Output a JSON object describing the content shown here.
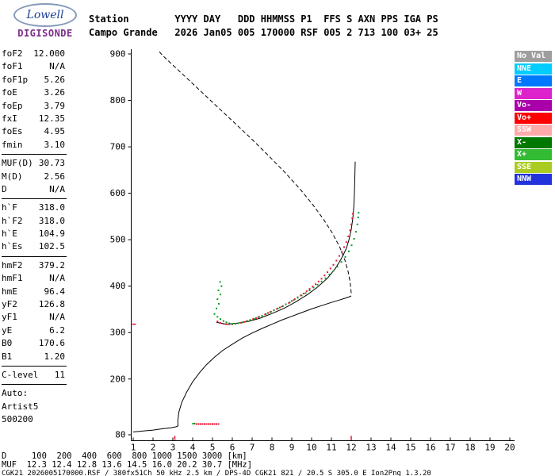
{
  "logo": {
    "brand": "Lowell",
    "product": "DIGISONDE"
  },
  "header": {
    "line1": "Station        YYYY DAY   DDD HHMMSS P1  FFS S AXN PPS IGA PS",
    "line2": "Campo Grande   2026 Jan05 005 170000 RSF 005 2 713 100 03+ 25"
  },
  "params": {
    "groups": [
      {
        "rows": [
          [
            "foF2",
            "12.000"
          ],
          [
            "foF1",
            "N/A"
          ],
          [
            "foF1p",
            "5.26"
          ],
          [
            "foE",
            "3.26"
          ],
          [
            "foEp",
            "3.79"
          ],
          [
            "fxI",
            "12.35"
          ],
          [
            "foEs",
            "4.95"
          ],
          [
            "fmin",
            "3.10"
          ]
        ]
      },
      {
        "rows": [
          [
            "MUF(D)",
            "30.73"
          ],
          [
            "M(D)",
            "2.56"
          ],
          [
            "D",
            "N/A"
          ]
        ]
      },
      {
        "rows": [
          [
            "h`F",
            "318.0"
          ],
          [
            "h`F2",
            "318.0"
          ],
          [
            "h`E",
            "104.9"
          ],
          [
            "h`Es",
            "102.5"
          ]
        ]
      },
      {
        "rows": [
          [
            "hmF2",
            "379.2"
          ],
          [
            "hmF1",
            "N/A"
          ],
          [
            "hmE",
            "96.4"
          ],
          [
            "yF2",
            "126.8"
          ],
          [
            "yF1",
            "N/A"
          ],
          [
            "yE",
            "6.2"
          ],
          [
            "B0",
            "170.6"
          ],
          [
            "B1",
            "1.20"
          ]
        ]
      },
      {
        "rows": [
          [
            "C-level",
            "11"
          ]
        ]
      }
    ],
    "footer": [
      "Auto:",
      "Artist5",
      "500200"
    ]
  },
  "legend": {
    "items": [
      {
        "label": "No Val",
        "bg": "#9e9e9e",
        "fg": "#ffffff"
      },
      {
        "label": "NNE",
        "bg": "#00ccff",
        "fg": "#ffffff"
      },
      {
        "label": "E",
        "bg": "#0077ff",
        "fg": "#ffffff"
      },
      {
        "label": "W",
        "bg": "#dd22cc",
        "fg": "#ffffff"
      },
      {
        "label": "Vo-",
        "bg": "#aa00aa",
        "fg": "#ffffff"
      },
      {
        "label": "Vo+",
        "bg": "#ff0000",
        "fg": "#ffffff"
      },
      {
        "label": "SSW",
        "bg": "#ffaaaa",
        "fg": "#ffffff"
      },
      {
        "label": "X-",
        "bg": "#007700",
        "fg": "#ffffff"
      },
      {
        "label": "X+",
        "bg": "#33bb33",
        "fg": "#ffffff"
      },
      {
        "label": "SSE",
        "bg": "#aacc22",
        "fg": "#ffffff"
      },
      {
        "label": "NNW",
        "bg": "#2233dd",
        "fg": "#ffffff"
      }
    ]
  },
  "chart": {
    "x_min": 1,
    "x_max": 20,
    "y_min": 80,
    "y_max": 900,
    "x_ticks": [
      1,
      2,
      3,
      4,
      5,
      6,
      7,
      8,
      9,
      10,
      11,
      12,
      13,
      14,
      15,
      16,
      17,
      18,
      19,
      20
    ],
    "y_ticks": [
      900,
      800,
      700,
      600,
      500,
      400,
      300,
      200,
      80
    ],
    "freq_markers": [
      3.1,
      12.0
    ],
    "height_markers": [
      318.0
    ]
  },
  "chart_data": {
    "type": "line",
    "title": "",
    "xlabel": "",
    "ylabel": "",
    "xlim": [
      1,
      20
    ],
    "ylim": [
      80,
      900
    ],
    "grid": false,
    "series": [
      {
        "name": "topside-profile-dashed",
        "style": "dashed",
        "color": "#000000",
        "points": [
          [
            12.0,
            385
          ],
          [
            11.95,
            406
          ],
          [
            11.85,
            430
          ],
          [
            11.68,
            456
          ],
          [
            11.42,
            484
          ],
          [
            11.05,
            514
          ],
          [
            10.6,
            544
          ],
          [
            10.05,
            576
          ],
          [
            9.4,
            610
          ],
          [
            8.65,
            645
          ],
          [
            7.8,
            682
          ],
          [
            6.9,
            720
          ],
          [
            5.95,
            758
          ],
          [
            5.0,
            796
          ],
          [
            4.05,
            834
          ],
          [
            3.15,
            870
          ],
          [
            2.45,
            898
          ],
          [
            2.3,
            906
          ]
        ]
      },
      {
        "name": "true-height-profile",
        "style": "solid",
        "color": "#000000",
        "points": [
          [
            1.0,
            86
          ],
          [
            1.5,
            88
          ],
          [
            2.0,
            90
          ],
          [
            2.5,
            93
          ],
          [
            2.9,
            95
          ],
          [
            3.15,
            97
          ],
          [
            3.26,
            99
          ],
          [
            3.25,
            110
          ],
          [
            3.3,
            128
          ],
          [
            3.45,
            150
          ],
          [
            3.7,
            172
          ],
          [
            4.0,
            194
          ],
          [
            4.35,
            214
          ],
          [
            4.7,
            231
          ],
          [
            5.1,
            247
          ],
          [
            5.5,
            261
          ],
          [
            6.0,
            275
          ],
          [
            6.5,
            288
          ],
          [
            7.0,
            299
          ],
          [
            7.5,
            309
          ],
          [
            8.0,
            318
          ],
          [
            8.5,
            327
          ],
          [
            9.0,
            335
          ],
          [
            9.5,
            343
          ],
          [
            10.0,
            351
          ],
          [
            10.5,
            358
          ],
          [
            11.0,
            365
          ],
          [
            11.4,
            370
          ],
          [
            11.7,
            374
          ],
          [
            11.9,
            377
          ],
          [
            12.0,
            379
          ]
        ]
      },
      {
        "name": "artist-trace-fit",
        "style": "solid",
        "color": "#000000",
        "points": [
          [
            5.2,
            322
          ],
          [
            5.7,
            318
          ],
          [
            6.2,
            320
          ],
          [
            6.8,
            324
          ],
          [
            7.4,
            331
          ],
          [
            8.0,
            341
          ],
          [
            8.6,
            352
          ],
          [
            9.2,
            366
          ],
          [
            9.8,
            382
          ],
          [
            10.3,
            398
          ],
          [
            10.8,
            417
          ],
          [
            11.2,
            438
          ],
          [
            11.5,
            459
          ],
          [
            11.75,
            481
          ],
          [
            11.9,
            502
          ],
          [
            12.0,
            522
          ],
          [
            12.08,
            546
          ],
          [
            12.13,
            572
          ],
          [
            12.16,
            600
          ],
          [
            12.18,
            632
          ],
          [
            12.2,
            668
          ]
        ]
      },
      {
        "name": "f-trace-o-mode",
        "style": "dots",
        "color": "#ee1133",
        "points": [
          [
            5.25,
            324
          ],
          [
            5.4,
            321
          ],
          [
            5.55,
            319
          ],
          [
            5.7,
            318
          ],
          [
            5.85,
            318
          ],
          [
            6.0,
            318
          ],
          [
            6.15,
            319
          ],
          [
            6.3,
            320
          ],
          [
            6.45,
            321
          ],
          [
            6.6,
            323
          ],
          [
            6.75,
            325
          ],
          [
            6.9,
            327
          ],
          [
            7.05,
            329
          ],
          [
            7.2,
            331
          ],
          [
            7.35,
            334
          ],
          [
            7.5,
            336
          ],
          [
            7.65,
            339
          ],
          [
            7.8,
            342
          ],
          [
            7.95,
            345
          ],
          [
            8.1,
            348
          ],
          [
            8.25,
            351
          ],
          [
            8.4,
            354
          ],
          [
            8.55,
            357
          ],
          [
            8.7,
            361
          ],
          [
            8.85,
            364
          ],
          [
            9.0,
            368
          ],
          [
            9.15,
            372
          ],
          [
            9.3,
            376
          ],
          [
            9.45,
            380
          ],
          [
            9.6,
            384
          ],
          [
            9.75,
            389
          ],
          [
            9.9,
            394
          ],
          [
            10.05,
            399
          ],
          [
            10.2,
            404
          ],
          [
            10.35,
            410
          ],
          [
            10.5,
            416
          ],
          [
            10.65,
            423
          ],
          [
            10.8,
            430
          ],
          [
            10.95,
            438
          ],
          [
            11.1,
            446
          ],
          [
            11.25,
            455
          ],
          [
            11.4,
            465
          ],
          [
            11.52,
            474
          ],
          [
            11.64,
            484
          ],
          [
            11.75,
            495
          ],
          [
            11.85,
            507
          ],
          [
            11.94,
            520
          ],
          [
            12.0,
            533
          ],
          [
            12.05,
            546
          ],
          [
            12.08,
            556
          ]
        ]
      },
      {
        "name": "f-trace-x-mode",
        "style": "dots",
        "color": "#00a020",
        "points": [
          [
            5.1,
            340
          ],
          [
            5.25,
            334
          ],
          [
            5.4,
            329
          ],
          [
            5.55,
            325
          ],
          [
            5.7,
            322
          ],
          [
            5.85,
            320
          ],
          [
            6.0,
            319
          ],
          [
            6.15,
            319
          ],
          [
            6.3,
            320
          ],
          [
            6.5,
            322
          ],
          [
            6.7,
            324
          ],
          [
            6.9,
            327
          ],
          [
            7.1,
            330
          ],
          [
            7.3,
            333
          ],
          [
            7.5,
            336
          ],
          [
            7.7,
            340
          ],
          [
            7.9,
            344
          ],
          [
            8.1,
            348
          ],
          [
            8.3,
            352
          ],
          [
            8.5,
            356
          ],
          [
            8.7,
            361
          ],
          [
            8.9,
            365
          ],
          [
            9.1,
            370
          ],
          [
            9.3,
            375
          ],
          [
            9.5,
            380
          ],
          [
            9.7,
            385
          ],
          [
            9.9,
            391
          ],
          [
            10.1,
            397
          ],
          [
            10.3,
            403
          ],
          [
            10.5,
            410
          ],
          [
            10.7,
            417
          ],
          [
            10.9,
            425
          ],
          [
            11.1,
            433
          ],
          [
            11.3,
            442
          ],
          [
            11.5,
            452
          ],
          [
            11.7,
            463
          ],
          [
            11.88,
            475
          ],
          [
            12.02,
            488
          ],
          [
            12.14,
            502
          ],
          [
            12.24,
            517
          ],
          [
            12.31,
            533
          ],
          [
            12.35,
            548
          ],
          [
            12.37,
            558
          ]
        ]
      },
      {
        "name": "x-mode-scatter",
        "style": "dots",
        "color": "#00a020",
        "points": [
          [
            5.2,
            352
          ],
          [
            5.32,
            362
          ],
          [
            5.25,
            372
          ],
          [
            5.4,
            382
          ],
          [
            5.3,
            391
          ],
          [
            5.45,
            400
          ],
          [
            5.38,
            409
          ]
        ]
      },
      {
        "name": "es-trace-o-mode",
        "style": "dots",
        "color": "#ee1133",
        "points": [
          [
            4.2,
            103
          ],
          [
            4.3,
            103
          ],
          [
            4.4,
            103
          ],
          [
            4.5,
            103
          ],
          [
            4.6,
            103
          ],
          [
            4.7,
            103
          ],
          [
            4.8,
            103
          ],
          [
            4.9,
            103
          ],
          [
            5.0,
            103
          ],
          [
            5.1,
            103
          ],
          [
            5.2,
            103
          ],
          [
            5.3,
            103
          ]
        ]
      },
      {
        "name": "es-trace-x-mode",
        "style": "dots",
        "color": "#00a020",
        "points": [
          [
            4.02,
            104
          ],
          [
            4.1,
            104
          ]
        ]
      }
    ]
  },
  "dmuf": {
    "d": {
      "label": "D",
      "values": [
        "100",
        "200",
        "400",
        "600",
        "800",
        "1000",
        "1500",
        "3000"
      ],
      "unit": "[km]"
    },
    "muf": {
      "label": "MUF",
      "values": [
        "12.3",
        "12.4",
        "12.8",
        "13.6",
        "14.5",
        "16.0",
        "20.2",
        "30.7"
      ],
      "unit": "[MHz]"
    }
  },
  "footer": "CGK21_2026005170000.RSF / 380fx51Ch 50 kHz 2.5 km / DPS-4D CGK21 821 / 20.5 S 305.0 E Ion2Png 1.3.20"
}
